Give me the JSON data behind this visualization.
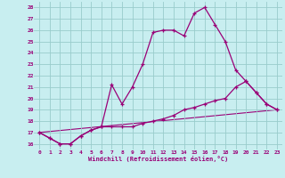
{
  "xlabel": "Windchill (Refroidissement éolien,°C)",
  "background_color": "#c8eef0",
  "grid_color": "#99cccc",
  "line_color": "#990077",
  "xlim": [
    -0.5,
    23.5
  ],
  "ylim": [
    15.5,
    28.5
  ],
  "xticks": [
    0,
    1,
    2,
    3,
    4,
    5,
    6,
    7,
    8,
    9,
    10,
    11,
    12,
    13,
    14,
    15,
    16,
    17,
    18,
    19,
    20,
    21,
    22,
    23
  ],
  "yticks": [
    16,
    17,
    18,
    19,
    20,
    21,
    22,
    23,
    24,
    25,
    26,
    27,
    28
  ],
  "line1_x": [
    0,
    1,
    2,
    3,
    4,
    5,
    6,
    7,
    8,
    9,
    10,
    11,
    12,
    13,
    14,
    15,
    16,
    17,
    18,
    19,
    20,
    21,
    22,
    23
  ],
  "line1_y": [
    17.0,
    16.5,
    16.0,
    16.0,
    16.7,
    17.2,
    17.5,
    21.2,
    19.5,
    21.0,
    23.0,
    25.8,
    26.0,
    26.0,
    25.5,
    27.5,
    28.0,
    26.5,
    25.0,
    22.5,
    21.5,
    20.5,
    19.5,
    19.0
  ],
  "line2_x": [
    0,
    1,
    2,
    3,
    4,
    5,
    6,
    7,
    8,
    9,
    10,
    11,
    12,
    13,
    14,
    15,
    16,
    17,
    18,
    19,
    20,
    21,
    22,
    23
  ],
  "line2_y": [
    17.0,
    16.5,
    16.0,
    16.0,
    16.7,
    17.2,
    17.5,
    17.5,
    17.5,
    17.5,
    17.8,
    18.0,
    18.2,
    18.5,
    19.0,
    19.2,
    19.5,
    19.8,
    20.0,
    21.0,
    21.5,
    20.5,
    19.5,
    19.0
  ],
  "line3_x": [
    0,
    23
  ],
  "line3_y": [
    17.0,
    19.0
  ]
}
